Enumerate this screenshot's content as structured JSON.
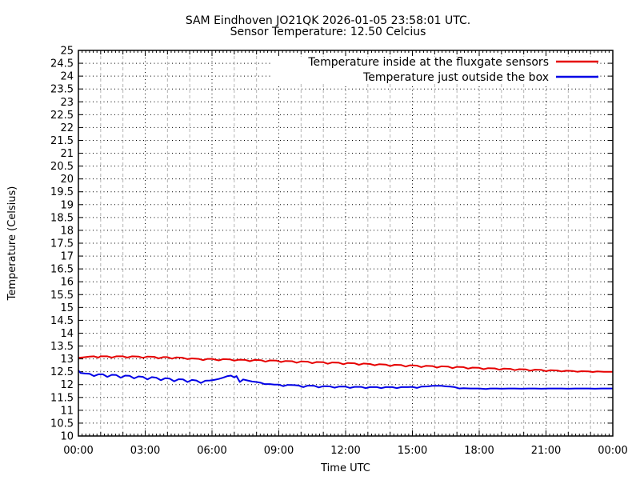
{
  "chart_data": {
    "type": "line",
    "title": "SAM Eindhoven JO21QK 2026-01-05 23:58:01 UTC.",
    "subtitle": "Sensor Temperature: 12.50 Celcius",
    "xlabel": "Time UTC",
    "ylabel": "Temperature (Celsius)",
    "xlim_hours": [
      0,
      24
    ],
    "ylim": [
      10,
      25
    ],
    "y_tick_step": 0.5,
    "grid": true,
    "legend_position": "top-right-inside",
    "x_ticks": [
      {
        "hour": 0,
        "label": "00:00"
      },
      {
        "hour": 3,
        "label": "03:00"
      },
      {
        "hour": 6,
        "label": "06:00"
      },
      {
        "hour": 9,
        "label": "09:00"
      },
      {
        "hour": 12,
        "label": "12:00"
      },
      {
        "hour": 15,
        "label": "15:00"
      },
      {
        "hour": 18,
        "label": "18:00"
      },
      {
        "hour": 21,
        "label": "21:00"
      },
      {
        "hour": 24,
        "label": "00:00"
      }
    ],
    "series": [
      {
        "name": "Temperature inside at the fluxgate sensors",
        "color": "#e60000",
        "points": [
          [
            0,
            13.04
          ],
          [
            0.2,
            13.06
          ],
          [
            0.5,
            13.09
          ],
          [
            0.7,
            13.1
          ],
          [
            0.9,
            13.05
          ],
          [
            1,
            13.1
          ],
          [
            1.3,
            13.1
          ],
          [
            1.5,
            13.05
          ],
          [
            1.7,
            13.1
          ],
          [
            2,
            13.1
          ],
          [
            2.2,
            13.05
          ],
          [
            2.4,
            13.1
          ],
          [
            2.7,
            13.09
          ],
          [
            2.9,
            13.04
          ],
          [
            3.1,
            13.09
          ],
          [
            3.4,
            13.08
          ],
          [
            3.6,
            13.02
          ],
          [
            3.8,
            13.07
          ],
          [
            4,
            13.07
          ],
          [
            4.2,
            13.01
          ],
          [
            4.4,
            13.06
          ],
          [
            4.7,
            13.04
          ],
          [
            4.9,
            12.99
          ],
          [
            5.1,
            13.02
          ],
          [
            5.4,
            13.0
          ],
          [
            5.6,
            12.95
          ],
          [
            5.8,
            13.0
          ],
          [
            6,
            13.0
          ],
          [
            6.3,
            12.94
          ],
          [
            6.5,
            12.99
          ],
          [
            6.8,
            12.98
          ],
          [
            7,
            12.93
          ],
          [
            7.2,
            12.97
          ],
          [
            7.5,
            12.96
          ],
          [
            7.7,
            12.91
          ],
          [
            7.9,
            12.96
          ],
          [
            8.2,
            12.95
          ],
          [
            8.4,
            12.89
          ],
          [
            8.6,
            12.94
          ],
          [
            8.9,
            12.93
          ],
          [
            9.1,
            12.88
          ],
          [
            9.3,
            12.92
          ],
          [
            9.6,
            12.91
          ],
          [
            9.8,
            12.85
          ],
          [
            10,
            12.9
          ],
          [
            10.3,
            12.89
          ],
          [
            10.5,
            12.83
          ],
          [
            10.7,
            12.88
          ],
          [
            11,
            12.87
          ],
          [
            11.2,
            12.81
          ],
          [
            11.4,
            12.86
          ],
          [
            11.7,
            12.85
          ],
          [
            11.9,
            12.79
          ],
          [
            12.1,
            12.84
          ],
          [
            12.4,
            12.83
          ],
          [
            12.6,
            12.77
          ],
          [
            12.8,
            12.82
          ],
          [
            13.1,
            12.8
          ],
          [
            13.3,
            12.75
          ],
          [
            13.5,
            12.79
          ],
          [
            13.8,
            12.78
          ],
          [
            14,
            12.72
          ],
          [
            14.2,
            12.77
          ],
          [
            14.5,
            12.76
          ],
          [
            14.7,
            12.7
          ],
          [
            14.9,
            12.75
          ],
          [
            15.2,
            12.74
          ],
          [
            15.4,
            12.68
          ],
          [
            15.6,
            12.73
          ],
          [
            15.9,
            12.72
          ],
          [
            16.1,
            12.66
          ],
          [
            16.3,
            12.71
          ],
          [
            16.6,
            12.7
          ],
          [
            16.8,
            12.64
          ],
          [
            17,
            12.69
          ],
          [
            17.3,
            12.68
          ],
          [
            17.5,
            12.62
          ],
          [
            17.7,
            12.66
          ],
          [
            18,
            12.65
          ],
          [
            18.2,
            12.6
          ],
          [
            18.4,
            12.64
          ],
          [
            18.7,
            12.63
          ],
          [
            18.9,
            12.58
          ],
          [
            19.1,
            12.62
          ],
          [
            19.4,
            12.61
          ],
          [
            19.6,
            12.56
          ],
          [
            19.8,
            12.6
          ],
          [
            20.1,
            12.59
          ],
          [
            20.3,
            12.54
          ],
          [
            20.5,
            12.58
          ],
          [
            20.8,
            12.57
          ],
          [
            21,
            12.52
          ],
          [
            21.2,
            12.56
          ],
          [
            21.5,
            12.55
          ],
          [
            21.7,
            12.51
          ],
          [
            21.9,
            12.54
          ],
          [
            22.2,
            12.53
          ],
          [
            22.4,
            12.5
          ],
          [
            22.6,
            12.52
          ],
          [
            22.9,
            12.51
          ],
          [
            23.1,
            12.49
          ],
          [
            23.3,
            12.51
          ],
          [
            23.6,
            12.5
          ],
          [
            23.8,
            12.5
          ],
          [
            24,
            12.5
          ]
        ]
      },
      {
        "name": "Temperature just outside the box",
        "color": "#0000e6",
        "points": [
          [
            0,
            12.55
          ],
          [
            0.1,
            12.45
          ],
          [
            0.3,
            12.43
          ],
          [
            0.5,
            12.42
          ],
          [
            0.7,
            12.33
          ],
          [
            0.9,
            12.4
          ],
          [
            1.1,
            12.4
          ],
          [
            1.3,
            12.3
          ],
          [
            1.5,
            12.38
          ],
          [
            1.7,
            12.37
          ],
          [
            1.9,
            12.27
          ],
          [
            2.1,
            12.35
          ],
          [
            2.3,
            12.34
          ],
          [
            2.5,
            12.24
          ],
          [
            2.7,
            12.32
          ],
          [
            2.9,
            12.3
          ],
          [
            3.1,
            12.2
          ],
          [
            3.3,
            12.29
          ],
          [
            3.5,
            12.27
          ],
          [
            3.7,
            12.17
          ],
          [
            3.9,
            12.25
          ],
          [
            4.1,
            12.23
          ],
          [
            4.3,
            12.13
          ],
          [
            4.5,
            12.21
          ],
          [
            4.7,
            12.2
          ],
          [
            4.9,
            12.1
          ],
          [
            5.1,
            12.18
          ],
          [
            5.3,
            12.16
          ],
          [
            5.5,
            12.06
          ],
          [
            5.7,
            12.15
          ],
          [
            5.9,
            12.16
          ],
          [
            6.1,
            12.18
          ],
          [
            6.3,
            12.22
          ],
          [
            6.5,
            12.27
          ],
          [
            6.7,
            12.33
          ],
          [
            6.85,
            12.35
          ],
          [
            7,
            12.28
          ],
          [
            7.1,
            12.33
          ],
          [
            7.25,
            12.1
          ],
          [
            7.4,
            12.2
          ],
          [
            7.6,
            12.16
          ],
          [
            7.8,
            12.12
          ],
          [
            8,
            12.1
          ],
          [
            8.2,
            12.07
          ],
          [
            8.35,
            12.02
          ],
          [
            8.6,
            12.02
          ],
          [
            8.8,
            12.0
          ],
          [
            9,
            12.0
          ],
          [
            9.2,
            11.94
          ],
          [
            9.4,
            11.99
          ],
          [
            9.7,
            11.98
          ],
          [
            9.9,
            11.96
          ],
          [
            10.1,
            11.9
          ],
          [
            10.3,
            11.96
          ],
          [
            10.6,
            11.95
          ],
          [
            10.8,
            11.89
          ],
          [
            11,
            11.94
          ],
          [
            11.3,
            11.93
          ],
          [
            11.5,
            11.88
          ],
          [
            11.7,
            11.92
          ],
          [
            12,
            11.92
          ],
          [
            12.2,
            11.87
          ],
          [
            12.4,
            11.91
          ],
          [
            12.7,
            11.91
          ],
          [
            12.9,
            11.86
          ],
          [
            13.1,
            11.9
          ],
          [
            13.4,
            11.9
          ],
          [
            13.6,
            11.86
          ],
          [
            13.8,
            11.9
          ],
          [
            14.1,
            11.9
          ],
          [
            14.3,
            11.86
          ],
          [
            14.5,
            11.9
          ],
          [
            14.8,
            11.9
          ],
          [
            15,
            11.91
          ],
          [
            15.2,
            11.87
          ],
          [
            15.4,
            11.92
          ],
          [
            15.7,
            11.93
          ],
          [
            15.9,
            11.95
          ],
          [
            16.1,
            11.95
          ],
          [
            16.3,
            11.95
          ],
          [
            16.5,
            11.93
          ],
          [
            16.7,
            11.92
          ],
          [
            16.9,
            11.9
          ],
          [
            17.1,
            11.85
          ],
          [
            17.3,
            11.86
          ],
          [
            17.6,
            11.85
          ],
          [
            17.8,
            11.85
          ],
          [
            18,
            11.85
          ],
          [
            18.3,
            11.83
          ],
          [
            18.5,
            11.85
          ],
          [
            18.8,
            11.85
          ],
          [
            19,
            11.84
          ],
          [
            19.3,
            11.85
          ],
          [
            19.6,
            11.85
          ],
          [
            19.9,
            11.84
          ],
          [
            20.2,
            11.85
          ],
          [
            20.5,
            11.85
          ],
          [
            20.8,
            11.84
          ],
          [
            21.1,
            11.85
          ],
          [
            21.4,
            11.85
          ],
          [
            21.7,
            11.85
          ],
          [
            22,
            11.84
          ],
          [
            22.3,
            11.85
          ],
          [
            22.6,
            11.85
          ],
          [
            22.9,
            11.85
          ],
          [
            23.2,
            11.84
          ],
          [
            23.5,
            11.85
          ],
          [
            23.8,
            11.85
          ],
          [
            24,
            11.85
          ]
        ]
      }
    ]
  }
}
